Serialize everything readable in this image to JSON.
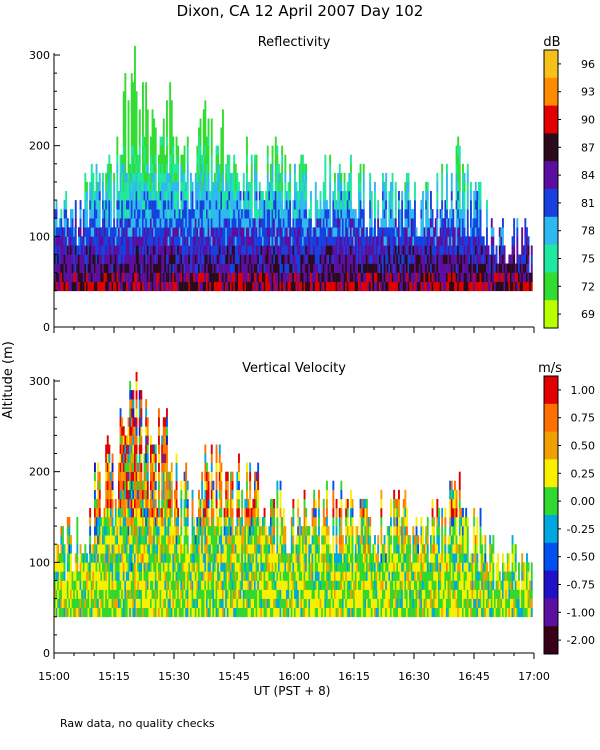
{
  "title": "Dixon, CA 12 April 2007  Day 102",
  "ylabel": "Altitude (m)",
  "xlabel": "UT  (PST + 8)",
  "footnote": "Raw data, no quality checks",
  "chart_data": [
    {
      "type": "heatmap",
      "title": "Reflectivity",
      "colorbar_label": "dB",
      "colorbar_ticks": [
        "96",
        "93",
        "90",
        "87",
        "84",
        "81",
        "78",
        "75",
        "72",
        "69"
      ],
      "colorbar_colors": [
        "#f6c21a",
        "#ff8c00",
        "#e00000",
        "#2a0a1c",
        "#5a0fa0",
        "#1640e0",
        "#30b8f0",
        "#20e8a0",
        "#32dc32",
        "#b8ff00"
      ],
      "y_ticks": [
        "300",
        "200",
        "100",
        "0"
      ],
      "ylim": [
        0,
        300
      ],
      "x_ticks": [
        "15:00",
        "15:15",
        "15:30",
        "15:45",
        "16:00",
        "16:15",
        "16:30",
        "16:45",
        "17:00"
      ],
      "xlim_hours": [
        15.0,
        17.0
      ],
      "data_base_m": 40,
      "echo_top_m": [
        [
          15.0,
          140
        ],
        [
          15.08,
          140
        ],
        [
          15.17,
          180
        ],
        [
          15.25,
          180
        ],
        [
          15.28,
          260
        ],
        [
          15.33,
          300
        ],
        [
          15.42,
          260
        ],
        [
          15.47,
          280
        ],
        [
          15.5,
          220
        ],
        [
          15.58,
          180
        ],
        [
          15.62,
          260
        ],
        [
          15.67,
          240
        ],
        [
          15.75,
          220
        ],
        [
          15.83,
          200
        ],
        [
          15.92,
          200
        ],
        [
          16.0,
          180
        ],
        [
          16.08,
          180
        ],
        [
          16.17,
          180
        ],
        [
          16.25,
          180
        ],
        [
          16.33,
          160
        ],
        [
          16.42,
          180
        ],
        [
          16.5,
          160
        ],
        [
          16.58,
          160
        ],
        [
          16.67,
          200
        ],
        [
          16.75,
          160
        ],
        [
          16.83,
          120
        ],
        [
          16.92,
          120
        ],
        [
          17.0,
          100
        ]
      ]
    },
    {
      "type": "heatmap",
      "title": "Vertical Velocity",
      "colorbar_label": "m/s",
      "colorbar_ticks": [
        "1.00",
        "0.75",
        "0.50",
        "0.25",
        "0.00",
        "-0.25",
        "-0.50",
        "-0.75",
        "-1.00",
        "-2.00"
      ],
      "colorbar_colors": [
        "#e00000",
        "#ff7000",
        "#f0a000",
        "#f8f000",
        "#30d830",
        "#00a8e0",
        "#0050f0",
        "#2010c8",
        "#5a10a0",
        "#3a0018"
      ],
      "y_ticks": [
        "300",
        "200",
        "100",
        "0"
      ],
      "ylim": [
        0,
        300
      ],
      "x_ticks": [
        "15:00",
        "15:15",
        "15:30",
        "15:45",
        "16:00",
        "16:15",
        "16:30",
        "16:45",
        "17:00"
      ],
      "xlim_hours": [
        15.0,
        17.0
      ],
      "data_base_m": 40,
      "echo_top_m": [
        [
          15.0,
          140
        ],
        [
          15.08,
          140
        ],
        [
          15.17,
          200
        ],
        [
          15.25,
          240
        ],
        [
          15.28,
          260
        ],
        [
          15.33,
          300
        ],
        [
          15.42,
          280
        ],
        [
          15.47,
          260
        ],
        [
          15.5,
          220
        ],
        [
          15.58,
          180
        ],
        [
          15.62,
          260
        ],
        [
          15.67,
          220
        ],
        [
          15.75,
          220
        ],
        [
          15.83,
          200
        ],
        [
          15.92,
          180
        ],
        [
          16.0,
          180
        ],
        [
          16.08,
          180
        ],
        [
          16.17,
          180
        ],
        [
          16.25,
          180
        ],
        [
          16.33,
          160
        ],
        [
          16.42,
          180
        ],
        [
          16.5,
          160
        ],
        [
          16.58,
          160
        ],
        [
          16.67,
          200
        ],
        [
          16.75,
          160
        ],
        [
          16.83,
          120
        ],
        [
          16.92,
          120
        ],
        [
          17.0,
          100
        ]
      ]
    }
  ]
}
